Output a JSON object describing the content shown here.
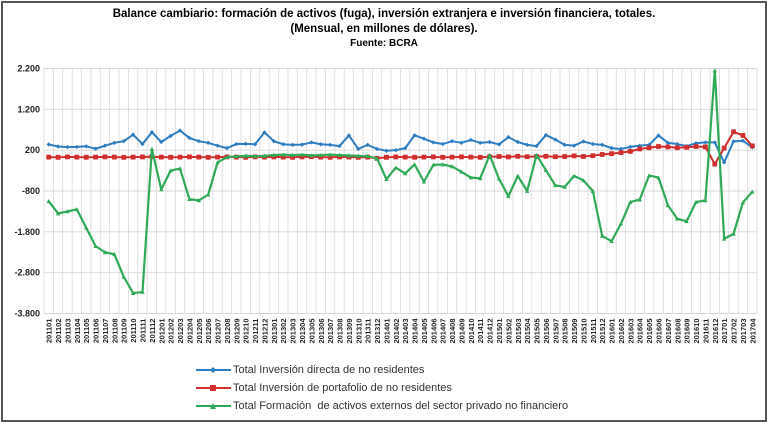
{
  "title": {
    "line1": "Balance cambiario: formación de activos (fuga), inversión extranjera e inversión financiera, totales.",
    "line2": "(Mensual, en millones de dólares).",
    "source": "Fuente: BCRA"
  },
  "colors": {
    "grid": "#d8d8d8",
    "axis_text": "#1f1f1f",
    "blue": "#2d7dc1",
    "red": "#d12f2f",
    "green": "#2faa57"
  },
  "chart_data": {
    "type": "line",
    "title": "Balance cambiario: formación de activos (fuga), inversión extranjera e inversión financiera, totales.",
    "subtitle": "(Mensual, en millones de dólares).",
    "source": "Fuente: BCRA",
    "grid": true,
    "legend_position": "bottom",
    "ylim": [
      -3800,
      2200
    ],
    "yticks": [
      {
        "value": 2200,
        "label": "2.200"
      },
      {
        "value": 1200,
        "label": "1.200"
      },
      {
        "value": 200,
        "label": "200"
      },
      {
        "value": -800,
        "label": "-800"
      },
      {
        "value": -1800,
        "label": "-1.800"
      },
      {
        "value": -2800,
        "label": "-2.800"
      },
      {
        "value": -3800,
        "label": "-3.800"
      }
    ],
    "x": [
      "201101",
      "201102",
      "201103",
      "201104",
      "201105",
      "201106",
      "201107",
      "201108",
      "201109",
      "201110",
      "201111",
      "201112",
      "201201",
      "201202",
      "201203",
      "201204",
      "201205",
      "201206",
      "201207",
      "201208",
      "201209",
      "201210",
      "201211",
      "201212",
      "201301",
      "201302",
      "201303",
      "201304",
      "201305",
      "201306",
      "201307",
      "201308",
      "201309",
      "201310",
      "201311",
      "201312",
      "201401",
      "201402",
      "201403",
      "201404",
      "201405",
      "201406",
      "201407",
      "201408",
      "201409",
      "201410",
      "201411",
      "201412",
      "201501",
      "201502",
      "201503",
      "201504",
      "201505",
      "201506",
      "201507",
      "201508",
      "201509",
      "201510",
      "201511",
      "201512",
      "201601",
      "201602",
      "201603",
      "201604",
      "201605",
      "201606",
      "201607",
      "201608",
      "201609",
      "201610",
      "201611",
      "201612",
      "201701",
      "201702",
      "201703",
      "201704"
    ],
    "series": [
      {
        "name": "Total Inversión directa de no residentes",
        "color": "#2d7dc1",
        "marker": "diamond",
        "values": [
          340,
          290,
          275,
          280,
          295,
          235,
          310,
          380,
          420,
          580,
          350,
          640,
          400,
          550,
          680,
          500,
          420,
          380,
          310,
          250,
          350,
          355,
          345,
          635,
          420,
          345,
          330,
          335,
          390,
          345,
          330,
          300,
          560,
          230,
          330,
          230,
          185,
          200,
          250,
          565,
          480,
          390,
          350,
          420,
          380,
          450,
          380,
          400,
          340,
          520,
          400,
          330,
          300,
          570,
          460,
          330,
          310,
          415,
          350,
          330,
          250,
          230,
          280,
          310,
          330,
          560,
          380,
          350,
          300,
          370,
          390,
          390,
          -100,
          415,
          430,
          270
        ]
      },
      {
        "name": "Total Inversión de portafolio de no residentes",
        "color": "#d12f2f",
        "marker": "square",
        "values": [
          30,
          25,
          35,
          30,
          25,
          30,
          35,
          30,
          25,
          30,
          35,
          40,
          30,
          25,
          30,
          35,
          30,
          25,
          30,
          35,
          30,
          25,
          35,
          30,
          35,
          30,
          25,
          35,
          40,
          30,
          25,
          35,
          30,
          25,
          30,
          0,
          25,
          35,
          30,
          25,
          30,
          35,
          25,
          30,
          35,
          30,
          25,
          40,
          45,
          35,
          50,
          40,
          45,
          50,
          40,
          45,
          60,
          45,
          65,
          95,
          115,
          140,
          170,
          230,
          260,
          290,
          280,
          260,
          270,
          290,
          280,
          -140,
          250,
          650,
          560,
          305
        ]
      },
      {
        "name": "Total Formación  de activos externos del sector privado no financiero",
        "color": "#2faa57",
        "marker": "triangle",
        "values": [
          -1050,
          -1350,
          -1300,
          -1250,
          -1700,
          -2150,
          -2300,
          -2350,
          -2900,
          -3300,
          -3275,
          230,
          -760,
          -300,
          -250,
          -1000,
          -1030,
          -890,
          -100,
          30,
          50,
          60,
          50,
          60,
          80,
          90,
          80,
          90,
          70,
          80,
          90,
          80,
          70,
          60,
          50,
          0,
          -510,
          -230,
          -370,
          -150,
          -570,
          -160,
          -150,
          -200,
          -330,
          -470,
          -490,
          80,
          -500,
          -930,
          -430,
          -800,
          80,
          -290,
          -660,
          -700,
          -430,
          -540,
          -800,
          -1900,
          -2030,
          -1600,
          -1070,
          -1010,
          -420,
          -470,
          -1150,
          -1480,
          -1540,
          -1070,
          -1030,
          2150,
          -1970,
          -1850,
          -1080,
          -820
        ]
      }
    ]
  }
}
